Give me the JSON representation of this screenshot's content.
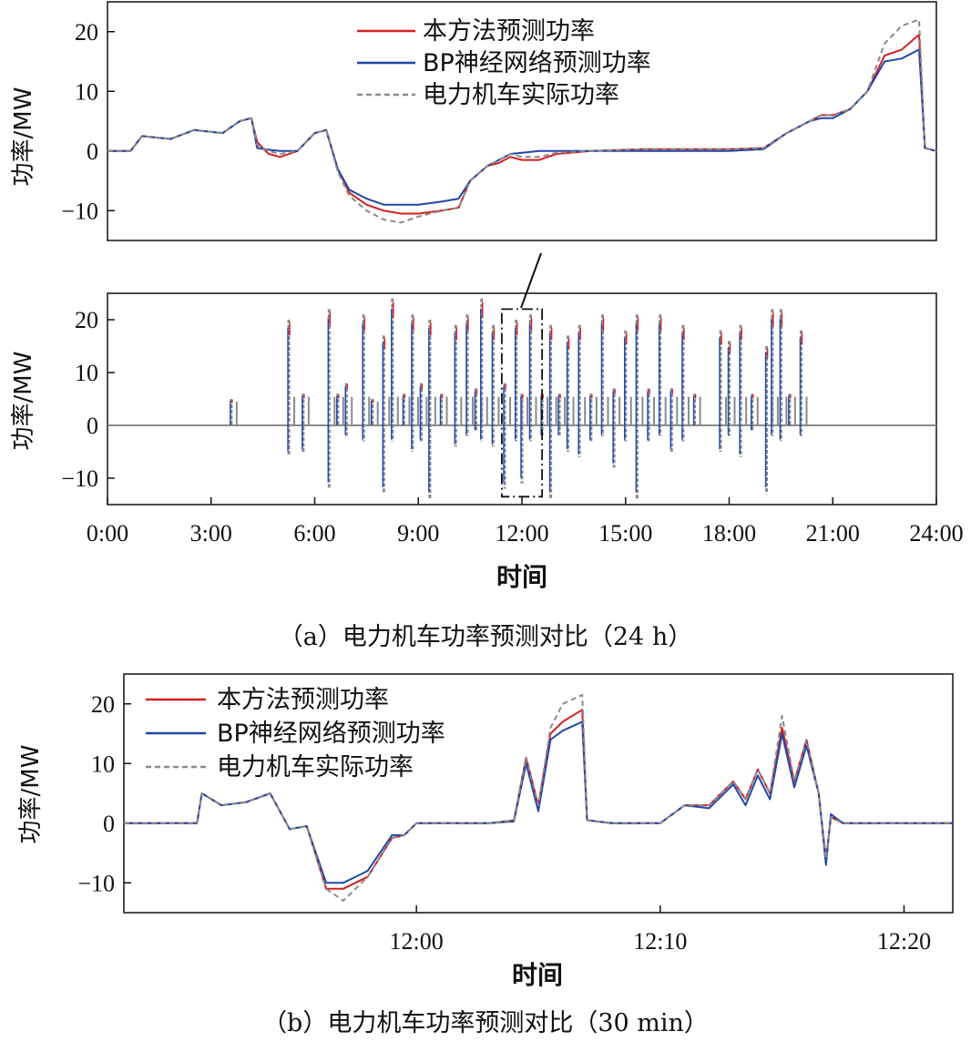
{
  "chart_data": [
    {
      "type": "line",
      "x_start": "00:00",
      "x_end": "24:00",
      "ylim": [
        -15,
        25
      ],
      "yticks": [
        "20",
        "10",
        "0",
        "−10"
      ],
      "ylabel": "功率/MW",
      "legend": {
        "placement": "top-center"
      },
      "series": [
        {
          "name": "本方法预测功率",
          "color": "#d42020",
          "style": "solid",
          "x": [
            "00:00",
            "00:40",
            "01:00",
            "01:50",
            "02:30",
            "03:20",
            "03:50",
            "04:10",
            "04:20",
            "04:40",
            "05:00",
            "05:30",
            "06:00",
            "06:20",
            "06:40",
            "07:00",
            "07:30",
            "08:00",
            "08:30",
            "09:00",
            "09:40",
            "10:10",
            "10:30",
            "11:00",
            "11:20",
            "11:40",
            "12:00",
            "12:30",
            "13:00",
            "14:00",
            "15:30",
            "17:00",
            "18:00",
            "19:00",
            "19:40",
            "20:20",
            "20:40",
            "21:00",
            "21:30",
            "22:00",
            "22:30",
            "23:00",
            "23:30",
            "23:40",
            "24:00"
          ],
          "values": [
            0,
            0,
            2.5,
            2,
            3.5,
            3,
            5,
            5.5,
            1.5,
            -0.5,
            -1,
            0,
            3,
            3.5,
            -3,
            -7,
            -9,
            -10,
            -10.5,
            -10.5,
            -10,
            -9.5,
            -5,
            -2.5,
            -2,
            -1,
            -1.5,
            -1.5,
            -0.5,
            0,
            0.3,
            0.3,
            0.3,
            0.5,
            3,
            5,
            6,
            6,
            7,
            10,
            16,
            17,
            19.5,
            0.5,
            0
          ]
        },
        {
          "name": "BP神经网络预测功率",
          "color": "#2147a8",
          "style": "solid",
          "x": [
            "00:00",
            "00:40",
            "01:00",
            "01:50",
            "02:30",
            "03:20",
            "03:50",
            "04:10",
            "04:20",
            "04:40",
            "05:00",
            "05:30",
            "06:00",
            "06:20",
            "06:40",
            "07:00",
            "07:30",
            "08:00",
            "08:30",
            "09:00",
            "09:40",
            "10:10",
            "10:30",
            "11:00",
            "11:20",
            "11:40",
            "12:00",
            "12:30",
            "13:00",
            "14:00",
            "15:30",
            "17:00",
            "18:00",
            "19:00",
            "19:40",
            "20:20",
            "20:40",
            "21:00",
            "21:30",
            "22:00",
            "22:30",
            "23:00",
            "23:30",
            "23:40",
            "24:00"
          ],
          "values": [
            0,
            0,
            2.5,
            2,
            3.5,
            3,
            5,
            5.5,
            0.5,
            0.2,
            0,
            0,
            3,
            3.5,
            -3,
            -6.5,
            -8,
            -9,
            -9,
            -9,
            -8.5,
            -8,
            -5,
            -2.5,
            -1.5,
            -0.5,
            -0.3,
            0,
            0,
            0,
            0,
            0,
            0,
            0.3,
            3,
            5,
            5.5,
            5.5,
            7,
            10,
            15,
            15.5,
            17,
            0.5,
            0
          ]
        },
        {
          "name": "电力机车实际功率",
          "color": "#8a8a8a",
          "style": "dashed",
          "x": [
            "00:00",
            "00:40",
            "01:00",
            "01:50",
            "02:30",
            "03:20",
            "03:50",
            "04:10",
            "04:20",
            "04:40",
            "05:00",
            "05:30",
            "06:00",
            "06:20",
            "06:40",
            "07:00",
            "07:30",
            "08:00",
            "08:30",
            "09:00",
            "09:40",
            "10:10",
            "10:30",
            "11:00",
            "11:20",
            "11:40",
            "12:00",
            "12:30",
            "13:00",
            "14:00",
            "15:30",
            "17:00",
            "18:00",
            "19:00",
            "19:40",
            "20:20",
            "20:40",
            "21:00",
            "21:30",
            "22:00",
            "22:30",
            "23:00",
            "23:30",
            "23:40",
            "24:00"
          ],
          "values": [
            0,
            0,
            2.5,
            2,
            3.5,
            3,
            5,
            5.5,
            1,
            0,
            -0.5,
            0,
            3,
            3.5,
            -3.5,
            -7.5,
            -10,
            -11.5,
            -12,
            -11,
            -10,
            -9.5,
            -5,
            -2.5,
            -1.5,
            -0.5,
            -1,
            -1,
            -0.3,
            0,
            0.3,
            0.3,
            0.3,
            0.5,
            3,
            5,
            6,
            6,
            7,
            10,
            18,
            21,
            22,
            0.5,
            0
          ]
        }
      ]
    },
    {
      "type": "line",
      "x_start": "00:00",
      "x_end": "24:00",
      "ylim": [
        -15,
        25
      ],
      "xticks": [
        "0:00",
        "3:00",
        "6:00",
        "9:00",
        "12:00",
        "15:00",
        "18:00",
        "21:00",
        "24:00"
      ],
      "yticks": [
        "20",
        "10",
        "0",
        "−10"
      ],
      "xlabel": "时间",
      "ylabel": "功率/MW",
      "zoom_box": {
        "x_start": "11:25",
        "x_end": "12:35",
        "y_top": 22,
        "y_bottom": -13.5
      },
      "spikes": [
        {
          "x": "03:35",
          "peak": 5,
          "trough": 0
        },
        {
          "x": "05:15",
          "peak": 20,
          "trough": -5.5
        },
        {
          "x": "05:40",
          "peak": 6,
          "trough": -5
        },
        {
          "x": "06:25",
          "peak": 22,
          "trough": -12
        },
        {
          "x": "06:40",
          "peak": 6,
          "trough": 0
        },
        {
          "x": "06:55",
          "peak": 8,
          "trough": -2
        },
        {
          "x": "07:25",
          "peak": 21,
          "trough": -3
        },
        {
          "x": "07:40",
          "peak": 5,
          "trough": 0
        },
        {
          "x": "08:00",
          "peak": 17,
          "trough": -13
        },
        {
          "x": "08:15",
          "peak": 24,
          "trough": -3
        },
        {
          "x": "08:35",
          "peak": 6,
          "trough": 0
        },
        {
          "x": "08:50",
          "peak": 21,
          "trough": -5
        },
        {
          "x": "09:05",
          "peak": 8,
          "trough": -3
        },
        {
          "x": "09:20",
          "peak": 20,
          "trough": -14
        },
        {
          "x": "09:40",
          "peak": 6,
          "trough": 0
        },
        {
          "x": "10:05",
          "peak": 19,
          "trough": -4
        },
        {
          "x": "10:25",
          "peak": 21,
          "trough": -2
        },
        {
          "x": "10:40",
          "peak": 7,
          "trough": -1
        },
        {
          "x": "10:50",
          "peak": 24,
          "trough": -3
        },
        {
          "x": "11:10",
          "peak": 19,
          "trough": -4
        },
        {
          "x": "11:30",
          "peak": 8,
          "trough": -12
        },
        {
          "x": "11:50",
          "peak": 20,
          "trough": -3
        },
        {
          "x": "12:00",
          "peak": 6,
          "trough": -11
        },
        {
          "x": "12:15",
          "peak": 21,
          "trough": -3
        },
        {
          "x": "12:35",
          "peak": 6,
          "trough": -2
        },
        {
          "x": "12:50",
          "peak": 19,
          "trough": -14
        },
        {
          "x": "13:05",
          "peak": 6,
          "trough": -2
        },
        {
          "x": "13:20",
          "peak": 17,
          "trough": -5
        },
        {
          "x": "13:40",
          "peak": 19,
          "trough": -6
        },
        {
          "x": "14:00",
          "peak": 6,
          "trough": -3
        },
        {
          "x": "14:20",
          "peak": 21,
          "trough": -2
        },
        {
          "x": "14:40",
          "peak": 7,
          "trough": -8
        },
        {
          "x": "15:00",
          "peak": 18,
          "trough": -3
        },
        {
          "x": "15:20",
          "peak": 21,
          "trough": -14
        },
        {
          "x": "15:40",
          "peak": 7,
          "trough": -3
        },
        {
          "x": "16:00",
          "peak": 21,
          "trough": -2
        },
        {
          "x": "16:20",
          "peak": 7,
          "trough": -5
        },
        {
          "x": "16:40",
          "peak": 19,
          "trough": -3
        },
        {
          "x": "17:00",
          "peak": 6,
          "trough": 0
        },
        {
          "x": "17:45",
          "peak": 18,
          "trough": -5
        },
        {
          "x": "18:00",
          "peak": 16,
          "trough": -2
        },
        {
          "x": "18:20",
          "peak": 19,
          "trough": -6
        },
        {
          "x": "18:40",
          "peak": 6,
          "trough": -1
        },
        {
          "x": "19:05",
          "peak": 15,
          "trough": -13
        },
        {
          "x": "19:15",
          "peak": 22,
          "trough": -2
        },
        {
          "x": "19:30",
          "peak": 22,
          "trough": -3
        },
        {
          "x": "19:45",
          "peak": 6,
          "trough": 0
        },
        {
          "x": "20:05",
          "peak": 18,
          "trough": -2
        }
      ]
    },
    {
      "type": "line",
      "x_start": "11:48",
      "x_end": "12:22",
      "ylim": [
        -15,
        25
      ],
      "xticks": [
        "12:00",
        "12:10",
        "12:20"
      ],
      "yticks": [
        "20",
        "10",
        "0",
        "−10"
      ],
      "xlabel": "时间",
      "ylabel": "功率/MW",
      "legend": {
        "placement": "top-left"
      },
      "series": [
        {
          "name": "本方法预测功率",
          "color": "#d42020",
          "style": "solid",
          "x": [
            "11:48",
            "11:51",
            "11:51.2",
            "11:52",
            "11:53",
            "11:54",
            "11:54.8",
            "11:55.5",
            "11:56.3",
            "11:57",
            "11:58",
            "11:59",
            "11:59.5",
            "12:00",
            "12:01",
            "12:02",
            "12:03",
            "12:04",
            "12:04.5",
            "12:05",
            "12:05.5",
            "12:06",
            "12:06.8",
            "12:07",
            "12:08",
            "12:09",
            "12:10",
            "12:11",
            "12:12",
            "12:13",
            "12:13.5",
            "12:14",
            "12:14.5",
            "12:15",
            "12:15.5",
            "12:16",
            "12:16.5",
            "12:16.8",
            "12:17",
            "12:17.5",
            "12:18",
            "12:22"
          ],
          "values": [
            0,
            0,
            5,
            3,
            3.5,
            5,
            -1,
            -0.5,
            -11,
            -11,
            -9,
            -2.5,
            -2,
            0,
            0,
            0,
            0,
            0.5,
            11,
            3,
            15,
            17,
            19,
            0.5,
            0,
            0,
            0,
            3,
            3,
            7,
            4,
            9,
            5,
            16,
            7,
            14,
            5,
            -6,
            1,
            0,
            0,
            0
          ]
        },
        {
          "name": "BP神经网络预测功率",
          "color": "#2147a8",
          "style": "solid",
          "x": [
            "11:48",
            "11:51",
            "11:51.2",
            "11:52",
            "11:53",
            "11:54",
            "11:54.8",
            "11:55.5",
            "11:56.3",
            "11:57",
            "11:58",
            "11:59",
            "11:59.5",
            "12:00",
            "12:01",
            "12:02",
            "12:03",
            "12:04",
            "12:04.5",
            "12:05",
            "12:05.5",
            "12:06",
            "12:06.8",
            "12:07",
            "12:08",
            "12:09",
            "12:10",
            "12:11",
            "12:12",
            "12:13",
            "12:13.5",
            "12:14",
            "12:14.5",
            "12:15",
            "12:15.5",
            "12:16",
            "12:16.5",
            "12:16.8",
            "12:17",
            "12:17.5",
            "12:18",
            "12:22"
          ],
          "values": [
            0,
            0,
            5,
            3,
            3.5,
            5,
            -1,
            -0.5,
            -10,
            -10,
            -8,
            -2,
            -2,
            0,
            0,
            0,
            0,
            0.3,
            10,
            2,
            14,
            15.5,
            17,
            0.5,
            0,
            0,
            0,
            3,
            2.5,
            6.5,
            3,
            8,
            4,
            15,
            6,
            13,
            5,
            -7,
            1.5,
            0,
            0,
            0
          ]
        },
        {
          "name": "电力机车实际功率",
          "color": "#8a8a8a",
          "style": "dashed",
          "x": [
            "11:48",
            "11:51",
            "11:51.2",
            "11:52",
            "11:53",
            "11:54",
            "11:54.8",
            "11:55.5",
            "11:56.3",
            "11:57",
            "11:58",
            "11:59",
            "11:59.5",
            "12:00",
            "12:01",
            "12:02",
            "12:03",
            "12:04",
            "12:04.5",
            "12:05",
            "12:05.5",
            "12:06",
            "12:06.8",
            "12:07",
            "12:08",
            "12:09",
            "12:10",
            "12:11",
            "12:12",
            "12:13",
            "12:13.5",
            "12:14",
            "12:14.5",
            "12:15",
            "12:15.5",
            "12:16",
            "12:16.5",
            "12:16.8",
            "12:17",
            "12:17.5",
            "12:18",
            "12:22"
          ],
          "values": [
            0,
            0,
            5,
            3,
            3.5,
            5,
            -1,
            -0.5,
            -11,
            -13,
            -9,
            -2.5,
            -2,
            0,
            0,
            0,
            0,
            0.5,
            11,
            3,
            16,
            20,
            21.5,
            0.5,
            0,
            0,
            0,
            3,
            3,
            7,
            4,
            9,
            5,
            18,
            7,
            14,
            5,
            -6,
            1,
            0,
            0,
            0
          ]
        }
      ]
    }
  ],
  "captions": {
    "a": "（a）电力机车功率预测对比（24 h）",
    "b": "（b）电力机车功率预测对比（30 min）"
  }
}
